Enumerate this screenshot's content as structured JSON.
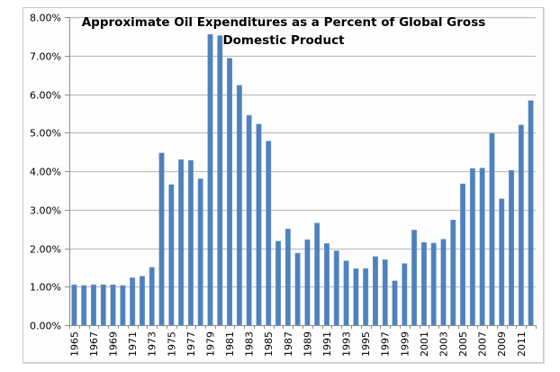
{
  "chart_data": {
    "type": "bar",
    "title": "Approximate Oil Expenditures as a Percent of Global Gross Domestic Product",
    "title_lines": [
      "Approximate Oil Expenditures as a Percent of Global Gross",
      "Domestic Product"
    ],
    "xlabel": "",
    "ylabel": "",
    "ylim": [
      0,
      8
    ],
    "y_ticks": [
      "0.00%",
      "1.00%",
      "2.00%",
      "3.00%",
      "4.00%",
      "5.00%",
      "6.00%",
      "7.00%",
      "8.00%"
    ],
    "y_tick_values": [
      0,
      1,
      2,
      3,
      4,
      5,
      6,
      7,
      8
    ],
    "grid": true,
    "legend": "none",
    "bar_color": "#4f81bd",
    "categories": [
      "1965",
      "1966",
      "1967",
      "1968",
      "1969",
      "1970",
      "1971",
      "1972",
      "1973",
      "1974",
      "1975",
      "1976",
      "1977",
      "1978",
      "1979",
      "1980",
      "1981",
      "1982",
      "1983",
      "1984",
      "1985",
      "1986",
      "1987",
      "1988",
      "1989",
      "1990",
      "1991",
      "1992",
      "1993",
      "1994",
      "1995",
      "1996",
      "1997",
      "1998",
      "1999",
      "2000",
      "2001",
      "2002",
      "2003",
      "2004",
      "2005",
      "2006",
      "2007",
      "2008",
      "2009",
      "2010",
      "2011",
      "2012"
    ],
    "x_tick_labels": [
      "1965",
      "1967",
      "1969",
      "1971",
      "1973",
      "1975",
      "1977",
      "1979",
      "1981",
      "1983",
      "1985",
      "1987",
      "1989",
      "1991",
      "1993",
      "1995",
      "1997",
      "1999",
      "2001",
      "2003",
      "2005",
      "2007",
      "2009",
      "2011"
    ],
    "values": [
      1.05,
      1.03,
      1.05,
      1.05,
      1.05,
      1.03,
      1.23,
      1.27,
      1.5,
      4.47,
      3.65,
      4.3,
      4.28,
      3.8,
      7.55,
      7.52,
      6.93,
      6.23,
      5.45,
      5.22,
      4.78,
      2.18,
      2.5,
      1.87,
      2.22,
      2.65,
      2.12,
      1.93,
      1.67,
      1.47,
      1.47,
      1.78,
      1.7,
      1.15,
      1.6,
      2.47,
      2.15,
      2.13,
      2.23,
      2.73,
      3.67,
      4.07,
      4.08,
      4.98,
      3.28,
      4.02,
      5.2,
      5.83
    ]
  }
}
